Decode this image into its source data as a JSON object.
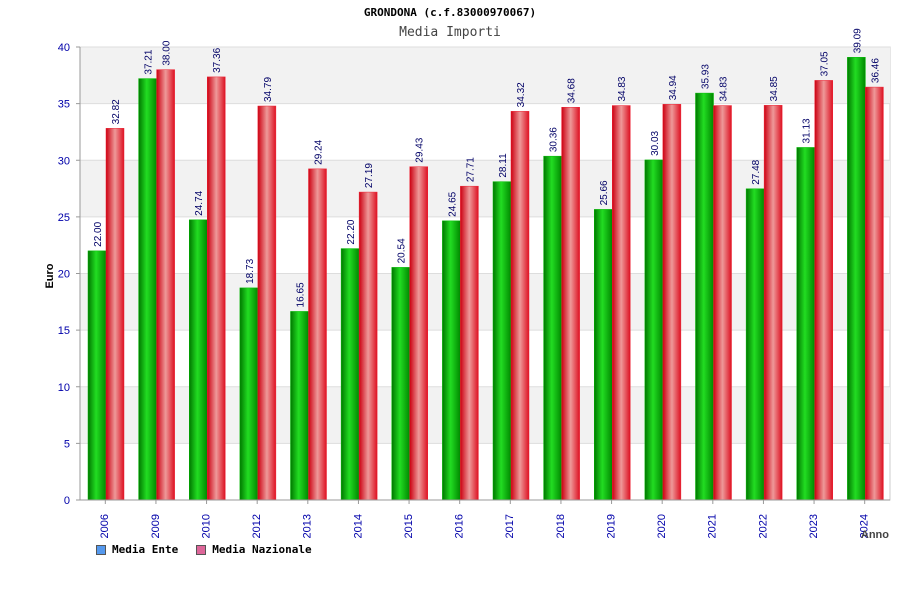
{
  "colors": {
    "series_ente": "#00bb00",
    "series_nazionale": "#ee2233",
    "legend_ente": "#5599ee",
    "legend_nazionale": "#dd6699",
    "axis_tick_label": "#0000aa",
    "data_label": "#000066"
  },
  "chart_data": {
    "type": "bar",
    "title": "GRONDONA (c.f.83000970067)",
    "subtitle": "Media Importi",
    "ylabel": "Euro",
    "xlabel": "Anno",
    "ylim": [
      0,
      40
    ],
    "yticks": [
      0,
      5,
      10,
      15,
      20,
      25,
      30,
      35,
      40
    ],
    "grid": true,
    "legend_position": "bottom-left",
    "categories": [
      "2006",
      "2009",
      "2010",
      "2012",
      "2013",
      "2014",
      "2015",
      "2016",
      "2017",
      "2018",
      "2019",
      "2020",
      "2021",
      "2022",
      "2023",
      "2024"
    ],
    "series": [
      {
        "name": "Media Ente",
        "values": [
          22.0,
          37.21,
          24.74,
          18.73,
          16.65,
          22.2,
          20.54,
          24.65,
          28.11,
          30.36,
          25.66,
          30.03,
          35.93,
          27.48,
          31.13,
          39.09
        ],
        "labels": [
          "22.00",
          "37.21",
          "24.74",
          "18.73",
          "16.65",
          "22.20",
          "20.54",
          "24.65",
          "28.11",
          "30.36",
          "25.66",
          "30.03",
          "35.93",
          "27.48",
          "31.13",
          "39.09"
        ]
      },
      {
        "name": "Media Nazionale",
        "values": [
          32.82,
          38.0,
          37.36,
          34.79,
          29.24,
          27.19,
          29.43,
          27.71,
          34.32,
          34.68,
          34.83,
          34.94,
          34.83,
          34.85,
          37.05,
          36.46
        ],
        "labels": [
          "32.82",
          "38.00",
          "37.36",
          "34.79",
          "29.24",
          "27.19",
          "29.43",
          "27.71",
          "34.32",
          "34.68",
          "34.83",
          "34.94",
          "34.83",
          "34.85",
          "37.05",
          "36.46"
        ]
      }
    ]
  }
}
